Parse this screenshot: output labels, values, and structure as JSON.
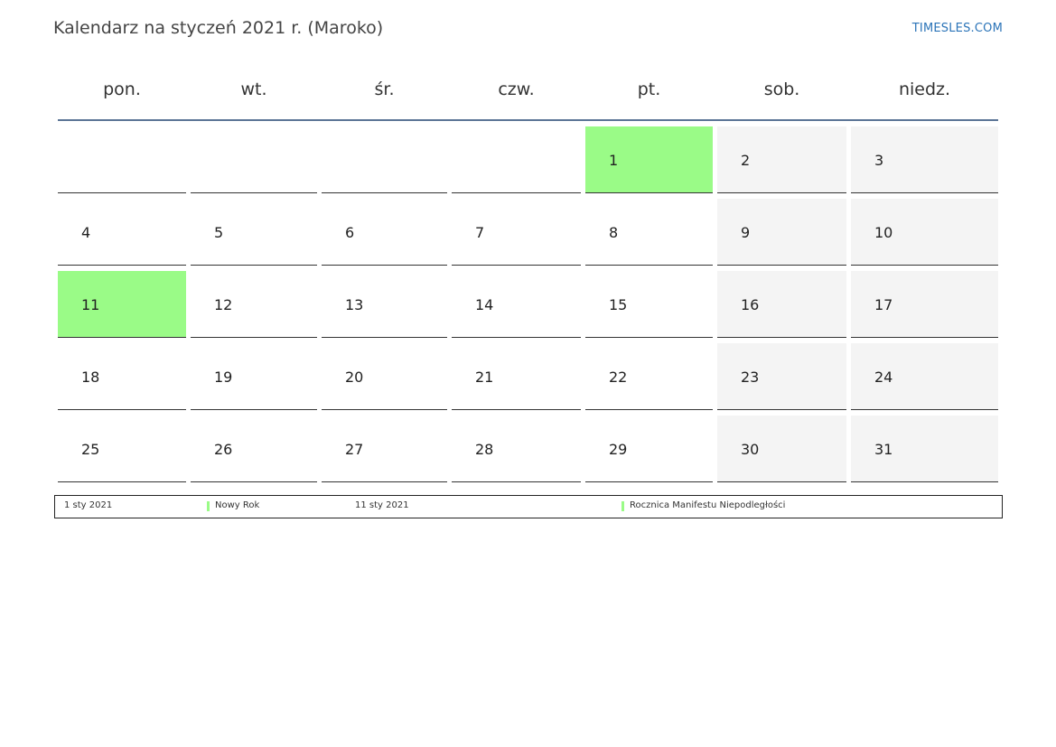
{
  "header": {
    "title": "Kalendarz na styczeń 2021 r. (Maroko)",
    "site": "TIMESLES.COM"
  },
  "weekdays": [
    "pon.",
    "wt.",
    "śr.",
    "czw.",
    "pt.",
    "sob.",
    "niedz."
  ],
  "weeks": [
    [
      "",
      "",
      "",
      "",
      "1",
      "2",
      "3"
    ],
    [
      "4",
      "5",
      "6",
      "7",
      "8",
      "9",
      "10"
    ],
    [
      "11",
      "12",
      "13",
      "14",
      "15",
      "16",
      "17"
    ],
    [
      "18",
      "19",
      "20",
      "21",
      "22",
      "23",
      "24"
    ],
    [
      "25",
      "26",
      "27",
      "28",
      "29",
      "30",
      "31"
    ]
  ],
  "holiday_days": [
    "1",
    "11"
  ],
  "colors": {
    "holiday": "#9afb87",
    "weekend": "#f4f4f4",
    "header_rule": "#5b7596",
    "link": "#2b74b8"
  },
  "legend": [
    {
      "date": "1 sty 2021",
      "name": "Nowy Rok"
    },
    {
      "date": "11 sty 2021",
      "name": "Rocznica Manifestu Niepodległości"
    }
  ]
}
